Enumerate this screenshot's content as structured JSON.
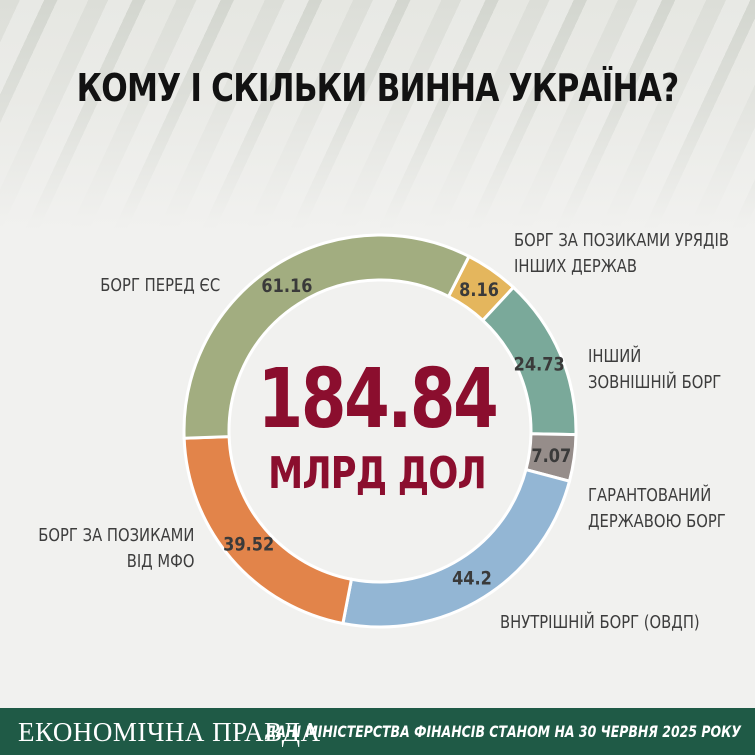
{
  "title": "КОМУ І СКІЛЬКИ ВИННА УКРАЇНА?",
  "chart_data": {
    "type": "pie",
    "total": "184.84",
    "unit": "МЛРД ДОЛ",
    "slices": [
      {
        "name": "БОРГ ЗА ПОЗИКАМИ УРЯДІВ ІНШИХ ДЕРЖАВ",
        "value": 8.16,
        "color": "#e4b65d"
      },
      {
        "name": "ІНШИЙ ЗОВНІШНІЙ БОРГ",
        "value": 24.73,
        "color": "#7aa99a"
      },
      {
        "name": "ГАРАНТОВАНИЙ ДЕРЖАВОЮ БОРГ",
        "value": 7.07,
        "color": "#968d8a"
      },
      {
        "name": "ВНУТРІШНІЙ БОРГ (ОВДП)",
        "value": 44.2,
        "color": "#93b6d4"
      },
      {
        "name": "БОРГ ЗА ПОЗИКАМИ ВІД МФО",
        "value": 39.52,
        "color": "#e2844a"
      },
      {
        "name": "БОРГ ПЕРЕД ЄС",
        "value": 61.16,
        "color": "#a2ad80"
      }
    ]
  },
  "labels": {
    "govt_line1": "БОРГ ЗА ПОЗИКАМИ УРЯДІВ",
    "govt_line2": "ІНШИХ ДЕРЖАВ",
    "other_line1": "ІНШИЙ",
    "other_line2": "ЗОВНІШНІЙ БОРГ",
    "guar_line1": "ГАРАНТОВАНИЙ",
    "guar_line2": "ДЕРЖАВОЮ БОРГ",
    "internal": "ВНУТРІШНІЙ БОРГ (ОВДП)",
    "mfo_line1": "БОРГ ЗА ПОЗИКАМИ",
    "mfo_line2": "ВІД МФО",
    "eu": "БОРГ ПЕРЕД ЄС"
  },
  "footer": {
    "brand": "ЕКОНОМІЧНА ПРАВДА",
    "source": "ДАНІ МІНІСТЕРСТВА ФІНАНСІВ СТАНОМ НА 30 ЧЕРВНЯ 2025 РОКУ"
  }
}
